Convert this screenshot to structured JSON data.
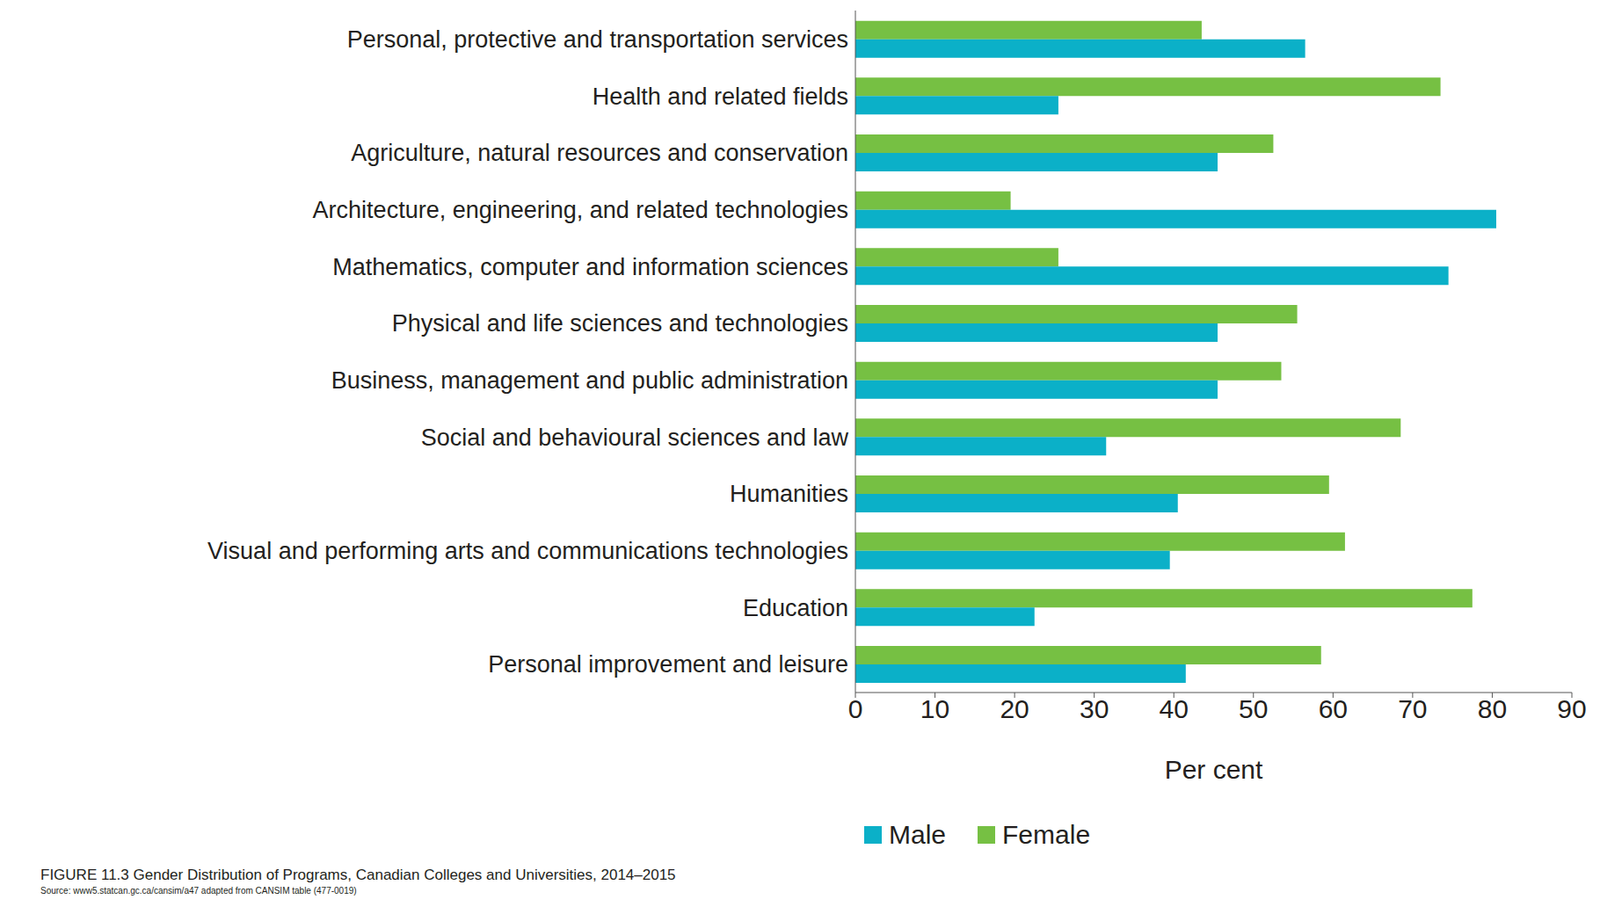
{
  "chart_data": {
    "type": "bar",
    "orientation": "horizontal",
    "title": "FIGURE 11.3 Gender Distribution of Programs, Canadian Colleges and Universities, 2014–2015",
    "annotations": [
      "Source: www5.statcan.gc.ca/cansim/a47 adapted from CANSIM table (477-0019)"
    ],
    "x_label": "Per cent",
    "categories": [
      "Personal, protective and transportation services",
      "Health and related fields",
      "Agriculture, natural resources and conservation",
      "Architecture, engineering, and related technologies",
      "Mathematics, computer and information sciences",
      "Physical and life sciences and technologies",
      "Business, management and public administration",
      "Social and behavioural sciences and law",
      "Humanities",
      "Visual and performing arts and communications technologies",
      "Education",
      "Personal improvement and leisure"
    ],
    "series": [
      {
        "name": "Female",
        "color": "#76c043",
        "values": [
          43.5,
          73.5,
          52.5,
          19.5,
          25.5,
          55.5,
          53.5,
          68.5,
          59.5,
          61.5,
          77.5,
          58.5
        ]
      },
      {
        "name": "Male",
        "color": "#0bb0c8",
        "values": [
          56.5,
          25.5,
          45.5,
          80.5,
          74.5,
          45.5,
          45.5,
          31.5,
          40.5,
          39.5,
          22.5,
          41.5
        ]
      }
    ],
    "xlim": [
      0,
      90
    ],
    "xticks": [
      0,
      10,
      20,
      30,
      40,
      50,
      60,
      70,
      80,
      90
    ],
    "grid": false,
    "legend": "bottom"
  }
}
